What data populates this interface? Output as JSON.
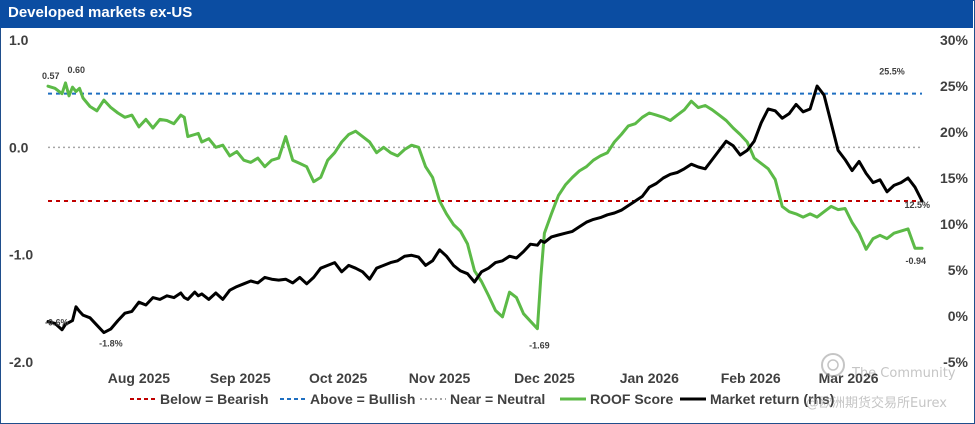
{
  "header": {
    "title": "Developed markets ex-US"
  },
  "watermark": {
    "line1": "The Community",
    "line2": "@欧洲期货交易所Eurex"
  },
  "colors": {
    "title_bg": "#0b4da2",
    "roof": "#5cba47",
    "market": "#000000",
    "bearish": "#c00000",
    "bullish": "#1f6fc1",
    "neutral": "#a6a6a6"
  },
  "chart_data": {
    "type": "line",
    "title": "Developed markets ex-US",
    "y_left": {
      "range": [
        -2.0,
        1.0
      ],
      "ticks": [
        1.0,
        0.0,
        -1.0,
        -2.0
      ],
      "tick_labels": [
        "1.0",
        "0.0",
        "-1.0",
        "-2.0"
      ]
    },
    "y_right": {
      "range": [
        -5,
        30
      ],
      "ticks": [
        30,
        25,
        20,
        15,
        10,
        5,
        0,
        -5
      ],
      "tick_labels": [
        "30%",
        "25%",
        "20%",
        "15%",
        "10%",
        "5%",
        "0%",
        "-5%"
      ]
    },
    "x": {
      "range": [
        0,
        250
      ],
      "ticks": [
        26,
        55,
        83,
        112,
        142,
        172,
        201,
        229
      ],
      "tick_labels": [
        "Aug 2025",
        "Sep 2025",
        "Oct 2025",
        "Nov 2025",
        "Dec 2025",
        "Jan 2026",
        "Feb 2026",
        "Mar 2026"
      ]
    },
    "reference_lines": [
      {
        "name": "Below = Bearish",
        "value": -0.5,
        "style": "dashed",
        "color": "#c00000"
      },
      {
        "name": "Above = Bullish",
        "value": 0.5,
        "style": "dashed",
        "color": "#1f6fc1"
      },
      {
        "name": "Near = Neutral",
        "value": 0.0,
        "style": "dotted",
        "color": "#a6a6a6"
      }
    ],
    "series": [
      {
        "name": "ROOF Score",
        "axis": "left",
        "color": "#5cba47",
        "x": [
          0,
          2,
          4,
          5,
          6,
          7,
          8,
          9,
          10,
          12,
          14,
          16,
          18,
          20,
          22,
          24,
          26,
          28,
          30,
          32,
          34,
          36,
          38,
          39,
          40,
          42,
          43,
          44,
          46,
          48,
          50,
          52,
          54,
          56,
          58,
          60,
          62,
          64,
          66,
          68,
          70,
          72,
          74,
          76,
          78,
          80,
          82,
          84,
          86,
          88,
          90,
          92,
          94,
          96,
          98,
          100,
          102,
          104,
          106,
          108,
          110,
          112,
          114,
          116,
          118,
          120,
          122,
          124,
          126,
          128,
          130,
          132,
          134,
          136,
          138,
          140,
          141,
          142,
          144,
          146,
          148,
          150,
          152,
          154,
          156,
          158,
          160,
          162,
          164,
          166,
          168,
          170,
          172,
          174,
          176,
          178,
          180,
          182,
          184,
          186,
          188,
          190,
          192,
          194,
          196,
          198,
          200,
          202,
          204,
          206,
          208,
          210,
          212,
          214,
          216,
          218,
          220,
          222,
          224,
          226,
          228,
          230,
          232,
          234,
          236,
          238,
          240,
          242,
          244,
          246,
          248,
          250
        ],
        "y": [
          0.57,
          0.55,
          0.5,
          0.6,
          0.48,
          0.56,
          0.52,
          0.55,
          0.46,
          0.38,
          0.34,
          0.44,
          0.37,
          0.32,
          0.28,
          0.3,
          0.19,
          0.26,
          0.18,
          0.26,
          0.25,
          0.22,
          0.3,
          0.28,
          0.1,
          0.12,
          0.13,
          0.05,
          0.08,
          0.0,
          0.02,
          -0.08,
          -0.04,
          -0.12,
          -0.14,
          -0.1,
          -0.18,
          -0.12,
          -0.1,
          0.1,
          -0.12,
          -0.15,
          -0.18,
          -0.32,
          -0.28,
          -0.12,
          -0.05,
          0.05,
          0.12,
          0.15,
          0.1,
          0.05,
          -0.05,
          0.0,
          -0.05,
          -0.08,
          -0.02,
          0.02,
          0.0,
          -0.18,
          -0.28,
          -0.5,
          -0.62,
          -0.72,
          -0.78,
          -0.9,
          -1.15,
          -1.25,
          -1.38,
          -1.52,
          -1.58,
          -1.35,
          -1.4,
          -1.55,
          -1.62,
          -1.69,
          -1.2,
          -0.8,
          -0.62,
          -0.45,
          -0.35,
          -0.28,
          -0.22,
          -0.18,
          -0.12,
          -0.08,
          -0.05,
          0.05,
          0.12,
          0.2,
          0.22,
          0.28,
          0.32,
          0.3,
          0.28,
          0.25,
          0.3,
          0.35,
          0.43,
          0.37,
          0.39,
          0.35,
          0.3,
          0.25,
          0.18,
          0.12,
          0.05,
          -0.1,
          -0.15,
          -0.2,
          -0.3,
          -0.55,
          -0.6,
          -0.62,
          -0.65,
          -0.62,
          -0.65,
          -0.6,
          -0.55,
          -0.58,
          -0.57,
          -0.7,
          -0.8,
          -0.95,
          -0.85,
          -0.82,
          -0.85,
          -0.8,
          -0.78,
          -0.76,
          -0.94,
          -0.94
        ],
        "labels": [
          "0.57",
          "0.60",
          "-1.69",
          "-0.94"
        ]
      },
      {
        "name": "Market return (rhs)",
        "axis": "right",
        "color": "#000000",
        "x": [
          0,
          2,
          4,
          5,
          6,
          7,
          8,
          9,
          10,
          12,
          14,
          16,
          18,
          20,
          22,
          24,
          26,
          28,
          30,
          32,
          34,
          36,
          38,
          39,
          40,
          42,
          43,
          44,
          46,
          48,
          50,
          52,
          54,
          56,
          58,
          60,
          62,
          64,
          66,
          68,
          70,
          72,
          74,
          76,
          78,
          80,
          82,
          84,
          86,
          88,
          90,
          92,
          94,
          96,
          98,
          100,
          102,
          104,
          106,
          108,
          110,
          112,
          114,
          116,
          118,
          120,
          122,
          124,
          126,
          128,
          130,
          132,
          134,
          136,
          138,
          140,
          141,
          142,
          144,
          146,
          148,
          150,
          152,
          154,
          156,
          158,
          160,
          162,
          164,
          166,
          168,
          170,
          172,
          174,
          176,
          178,
          180,
          182,
          184,
          186,
          188,
          190,
          192,
          194,
          196,
          198,
          200,
          202,
          204,
          206,
          208,
          210,
          212,
          214,
          216,
          218,
          220,
          222,
          224,
          226,
          228,
          230,
          232,
          234,
          236,
          238,
          240,
          242,
          244,
          246,
          248,
          250
        ],
        "y": [
          -0.6,
          -0.8,
          -1.5,
          -0.9,
          -0.7,
          -0.5,
          1.0,
          0.5,
          0.1,
          -0.2,
          -1.0,
          -1.8,
          -1.4,
          -0.5,
          0.3,
          0.5,
          1.5,
          1.2,
          2.0,
          1.8,
          2.2,
          2.0,
          2.5,
          2.0,
          1.8,
          2.6,
          2.2,
          2.4,
          1.8,
          2.5,
          1.8,
          2.8,
          3.2,
          3.5,
          3.8,
          3.6,
          4.2,
          4.0,
          3.9,
          4.0,
          3.6,
          4.2,
          3.5,
          4.2,
          5.2,
          5.5,
          5.8,
          4.8,
          5.5,
          5.2,
          4.8,
          4.0,
          5.2,
          5.5,
          5.8,
          6.0,
          6.5,
          6.6,
          6.4,
          5.5,
          6.0,
          7.2,
          6.5,
          5.5,
          4.9,
          4.6,
          3.7,
          4.8,
          5.2,
          5.8,
          6.0,
          6.5,
          6.3,
          7.0,
          7.8,
          7.7,
          8.2,
          8.0,
          8.6,
          8.8,
          9.0,
          9.2,
          9.7,
          10.2,
          10.5,
          10.7,
          11.0,
          11.2,
          11.5,
          12.0,
          12.5,
          13.0,
          14.0,
          14.4,
          15.0,
          15.4,
          15.6,
          16.0,
          16.5,
          16.2,
          16.0,
          17.0,
          18.0,
          19.0,
          18.5,
          17.5,
          18.0,
          19.0,
          21.0,
          22.5,
          22.3,
          21.5,
          22.0,
          23.0,
          22.2,
          22.5,
          25.0,
          24.0,
          21.0,
          18.0,
          17.0,
          15.8,
          16.8,
          15.5,
          14.5,
          14.8,
          13.5,
          14.2,
          14.5,
          15.0,
          14.0,
          12.5
        ],
        "labels": [
          "-0.6%",
          "-1.8%",
          "25.5%",
          "12.5%"
        ]
      }
    ],
    "legend": {
      "position": "bottom",
      "entries": [
        "Below = Bearish",
        "Above = Bullish",
        "Near = Neutral",
        "ROOF Score",
        "Market return (rhs)"
      ]
    }
  }
}
